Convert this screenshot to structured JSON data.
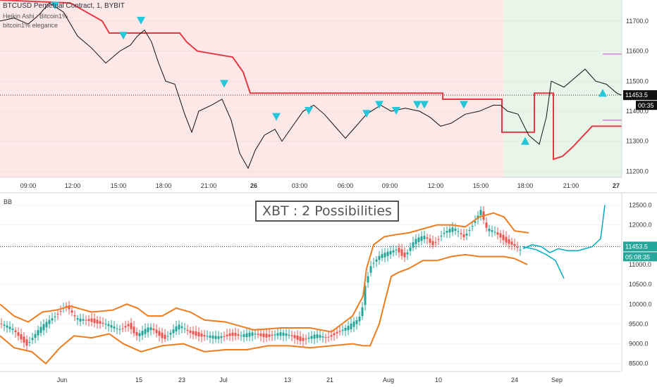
{
  "header": {
    "symbol": "BTCUSD Perpetual Contract, 1, BYBIT",
    "indicator1": "Heikin Ashi : Bitcoin1%",
    "indicator2": "bitcoin1% elegance"
  },
  "lower_label": "BB",
  "annotation": "XBT : 2 Possibilities",
  "colors": {
    "bg_red": "#fde8e8",
    "bg_green": "#e8f5e9",
    "stop_line": "#e53946",
    "marker": "#26c6da",
    "bands": "#ef7d1f",
    "projection": "#00acc1",
    "magenta": "#d63be0",
    "candle_up": "#26a69a",
    "candle_down": "#ef5350"
  },
  "chart_data": [
    {
      "type": "line",
      "title": "BTCUSD Perpetual Contract, 1, BYBIT",
      "x_ticks": [
        "09:00",
        "12:00",
        "15:00",
        "18:00",
        "21:00",
        "26",
        "03:00",
        "06:00",
        "09:00",
        "12:00",
        "15:00",
        "18:00",
        "21:00",
        "27"
      ],
      "y_ticks": [
        11200.0,
        11300.0,
        11400.0,
        11500.0,
        11600.0,
        11700.0
      ],
      "ylim": [
        11180,
        11770
      ],
      "price_points": [
        [
          0,
          11700
        ],
        [
          20,
          11710
        ],
        [
          40,
          11690
        ],
        [
          55,
          11720
        ],
        [
          70,
          11760
        ],
        [
          90,
          11730
        ],
        [
          110,
          11650
        ],
        [
          130,
          11610
        ],
        [
          150,
          11560
        ],
        [
          170,
          11600
        ],
        [
          185,
          11620
        ],
        [
          195,
          11650
        ],
        [
          205,
          11670
        ],
        [
          215,
          11630
        ],
        [
          225,
          11560
        ],
        [
          235,
          11500
        ],
        [
          248,
          11490
        ],
        [
          262,
          11390
        ],
        [
          272,
          11330
        ],
        [
          282,
          11400
        ],
        [
          300,
          11420
        ],
        [
          315,
          11440
        ],
        [
          328,
          11370
        ],
        [
          340,
          11260
        ],
        [
          352,
          11210
        ],
        [
          362,
          11270
        ],
        [
          375,
          11320
        ],
        [
          390,
          11340
        ],
        [
          400,
          11300
        ],
        [
          415,
          11350
        ],
        [
          430,
          11400
        ],
        [
          445,
          11420
        ],
        [
          460,
          11390
        ],
        [
          475,
          11350
        ],
        [
          490,
          11310
        ],
        [
          505,
          11350
        ],
        [
          520,
          11390
        ],
        [
          540,
          11420
        ],
        [
          555,
          11400
        ],
        [
          575,
          11410
        ],
        [
          595,
          11400
        ],
        [
          610,
          11380
        ],
        [
          625,
          11350
        ],
        [
          640,
          11360
        ],
        [
          660,
          11390
        ],
        [
          680,
          11400
        ],
        [
          700,
          11420
        ],
        [
          710,
          11420
        ],
        [
          720,
          11400
        ],
        [
          735,
          11390
        ],
        [
          750,
          11320
        ],
        [
          765,
          11290
        ],
        [
          775,
          11380
        ],
        [
          782,
          11500
        ],
        [
          800,
          11480
        ],
        [
          815,
          11510
        ],
        [
          830,
          11540
        ],
        [
          845,
          11500
        ],
        [
          860,
          11490
        ],
        [
          875,
          11460
        ],
        [
          882,
          11453
        ]
      ],
      "stop_line_steps": [
        [
          0,
          11770
        ],
        [
          100,
          11760
        ],
        [
          145,
          11700
        ],
        [
          155,
          11660
        ],
        [
          255,
          11660
        ],
        [
          265,
          11630
        ],
        [
          280,
          11600
        ],
        [
          330,
          11580
        ],
        [
          345,
          11530
        ],
        [
          355,
          11460
        ],
        [
          628,
          11460
        ],
        [
          628,
          11440
        ],
        [
          712,
          11440
        ],
        [
          712,
          11330
        ],
        [
          758,
          11330
        ],
        [
          758,
          11460
        ],
        [
          785,
          11460
        ],
        [
          785,
          11240
        ],
        [
          798,
          11250
        ],
        [
          812,
          11280
        ],
        [
          828,
          11320
        ],
        [
          840,
          11350
        ],
        [
          882,
          11350
        ]
      ],
      "down_markers": [
        [
          78,
          11750
        ],
        [
          175,
          11650
        ],
        [
          200,
          11700
        ],
        [
          318,
          11490
        ],
        [
          392,
          11380
        ],
        [
          438,
          11400
        ],
        [
          520,
          11390
        ],
        [
          538,
          11420
        ],
        [
          562,
          11400
        ],
        [
          592,
          11420
        ],
        [
          602,
          11420
        ],
        [
          658,
          11420
        ]
      ],
      "up_markers": [
        [
          745,
          11300
        ],
        [
          855,
          11460
        ]
      ],
      "magenta_levels": [
        [
          855,
          11590
        ],
        [
          855,
          11370
        ]
      ],
      "last_price": 11453.5,
      "countdown": "00:35"
    },
    {
      "type": "line",
      "title": "BB",
      "x_ticks": [
        "Jun",
        "15",
        "23",
        "Jul",
        "13",
        "21",
        "Aug",
        "10",
        "24",
        "Sep"
      ],
      "y_ticks": [
        8500.0,
        9000.0,
        9500.0,
        10000.0,
        10500.0,
        11000.0,
        11500.0,
        12000.0,
        12500.0
      ],
      "ylim": [
        8300,
        12650
      ],
      "price_line": [
        [
          0,
          9520
        ],
        [
          20,
          9350
        ],
        [
          40,
          9000
        ],
        [
          55,
          9300
        ],
        [
          70,
          9550
        ],
        [
          85,
          9800
        ],
        [
          95,
          10000
        ],
        [
          110,
          9600
        ],
        [
          130,
          9600
        ],
        [
          150,
          9500
        ],
        [
          170,
          9350
        ],
        [
          185,
          9500
        ],
        [
          195,
          9200
        ],
        [
          215,
          9400
        ],
        [
          235,
          9150
        ],
        [
          255,
          9450
        ],
        [
          270,
          9300
        ],
        [
          290,
          9200
        ],
        [
          310,
          9150
        ],
        [
          330,
          9250
        ],
        [
          345,
          9200
        ],
        [
          360,
          9250
        ],
        [
          380,
          9200
        ],
        [
          400,
          9250
        ],
        [
          415,
          9200
        ],
        [
          430,
          9100
        ],
        [
          450,
          9200
        ],
        [
          465,
          9150
        ],
        [
          480,
          9300
        ],
        [
          495,
          9400
        ],
        [
          510,
          9600
        ],
        [
          515,
          9800
        ],
        [
          520,
          10500
        ],
        [
          528,
          11000
        ],
        [
          540,
          11200
        ],
        [
          555,
          11300
        ],
        [
          565,
          11400
        ],
        [
          575,
          11200
        ],
        [
          590,
          11600
        ],
        [
          605,
          11700
        ],
        [
          615,
          11500
        ],
        [
          630,
          11800
        ],
        [
          645,
          11900
        ],
        [
          660,
          11700
        ],
        [
          675,
          12100
        ],
        [
          685,
          12400
        ],
        [
          690,
          11900
        ],
        [
          705,
          11800
        ],
        [
          720,
          11600
        ],
        [
          730,
          11500
        ],
        [
          742,
          11300
        ]
      ],
      "upper_band": [
        [
          0,
          10000
        ],
        [
          20,
          9700
        ],
        [
          40,
          9550
        ],
        [
          60,
          9800
        ],
        [
          80,
          9850
        ],
        [
          100,
          9950
        ],
        [
          130,
          9800
        ],
        [
          160,
          9850
        ],
        [
          180,
          10000
        ],
        [
          195,
          9900
        ],
        [
          210,
          9700
        ],
        [
          230,
          9700
        ],
        [
          250,
          9900
        ],
        [
          270,
          9800
        ],
        [
          290,
          9600
        ],
        [
          320,
          9550
        ],
        [
          360,
          9350
        ],
        [
          400,
          9400
        ],
        [
          440,
          9400
        ],
        [
          470,
          9300
        ],
        [
          500,
          9700
        ],
        [
          515,
          10200
        ],
        [
          520,
          10900
        ],
        [
          530,
          11500
        ],
        [
          545,
          11700
        ],
        [
          560,
          11750
        ],
        [
          580,
          11800
        ],
        [
          600,
          11900
        ],
        [
          620,
          12000
        ],
        [
          640,
          12000
        ],
        [
          660,
          11950
        ],
        [
          680,
          12200
        ],
        [
          700,
          12300
        ],
        [
          715,
          12200
        ],
        [
          730,
          11850
        ],
        [
          750,
          11800
        ]
      ],
      "lower_band": [
        [
          0,
          9200
        ],
        [
          20,
          8900
        ],
        [
          45,
          8800
        ],
        [
          65,
          8500
        ],
        [
          85,
          8900
        ],
        [
          105,
          9200
        ],
        [
          130,
          9150
        ],
        [
          155,
          9250
        ],
        [
          175,
          9000
        ],
        [
          200,
          8800
        ],
        [
          230,
          8950
        ],
        [
          260,
          9000
        ],
        [
          290,
          8800
        ],
        [
          320,
          8850
        ],
        [
          350,
          8850
        ],
        [
          380,
          8950
        ],
        [
          410,
          8950
        ],
        [
          440,
          8900
        ],
        [
          470,
          8950
        ],
        [
          500,
          9000
        ],
        [
          515,
          8950
        ],
        [
          525,
          8950
        ],
        [
          538,
          9500
        ],
        [
          545,
          10000
        ],
        [
          555,
          10700
        ],
        [
          565,
          10800
        ],
        [
          580,
          10900
        ],
        [
          600,
          11100
        ],
        [
          620,
          11100
        ],
        [
          640,
          11200
        ],
        [
          660,
          11250
        ],
        [
          680,
          11200
        ],
        [
          700,
          11200
        ],
        [
          715,
          11200
        ],
        [
          730,
          11150
        ],
        [
          748,
          11000
        ]
      ],
      "projections": [
        {
          "name": "",
          "points": [
            [
              742,
              11400
            ],
            [
              755,
              11500
            ],
            [
              768,
              11450
            ],
            [
              780,
              11300
            ],
            [
              792,
              11400
            ],
            [
              805,
              11350
            ],
            [
              820,
              11350
            ],
            [
              840,
              11450
            ],
            [
              852,
              11650
            ],
            [
              858,
              12500
            ]
          ]
        },
        {
          "name": "",
          "points": [
            [
              742,
              11450
            ],
            [
              760,
              11380
            ],
            [
              775,
              11250
            ],
            [
              788,
              11100
            ],
            [
              800,
              10650
            ]
          ]
        }
      ],
      "last_price": 11453.5,
      "countdown": "05:08:35"
    }
  ]
}
